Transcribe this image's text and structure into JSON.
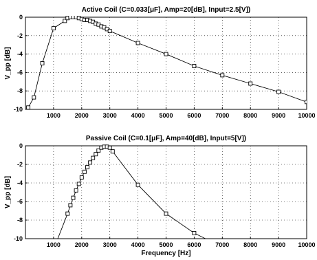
{
  "chart_data": [
    {
      "type": "line",
      "title": "Active Coil (C=0.033[μF], Amp=20[dB], Input=2.5[V])",
      "xlabel": "",
      "ylabel": "V_pp [dB]",
      "xlim": [
        0,
        10000
      ],
      "ylim": [
        -10,
        0
      ],
      "xticks": [
        1000,
        2000,
        3000,
        4000,
        5000,
        6000,
        7000,
        8000,
        9000,
        10000
      ],
      "yticks": [
        0,
        -2,
        -4,
        -6,
        -8,
        -10
      ],
      "grid": true,
      "marker": "square",
      "x": [
        100,
        300,
        600,
        1000,
        1400,
        1500,
        1600,
        1700,
        1800,
        1900,
        2000,
        2100,
        2200,
        2300,
        2400,
        2500,
        2600,
        2700,
        2800,
        2900,
        3000,
        4000,
        5000,
        6000,
        7000,
        8000,
        9000,
        10000
      ],
      "y": [
        -9.8,
        -8.7,
        -5.0,
        -1.2,
        -0.4,
        -0.1,
        0,
        0,
        0,
        -0.1,
        -0.2,
        -0.3,
        -0.3,
        -0.4,
        -0.5,
        -0.7,
        -0.8,
        -1.0,
        -1.1,
        -1.3,
        -1.5,
        -2.8,
        -4.0,
        -5.3,
        -6.3,
        -7.2,
        -8.1,
        -9.2
      ]
    },
    {
      "type": "line",
      "title": "Passive Coil (C=0.1[μF], Amp=40[dB], Input=5[V])",
      "xlabel": "Frequency [Hz]",
      "ylabel": "V_pp [dB]",
      "xlim": [
        0,
        10000
      ],
      "ylim": [
        -10,
        0
      ],
      "xticks": [
        1000,
        2000,
        3000,
        4000,
        5000,
        6000,
        7000,
        8000,
        9000,
        10000
      ],
      "yticks": [
        0,
        -2,
        -4,
        -6,
        -8,
        -10
      ],
      "grid": true,
      "marker": "square",
      "x": [
        1150,
        1500,
        1600,
        1700,
        1800,
        1900,
        2000,
        2100,
        2200,
        2300,
        2400,
        2500,
        2600,
        2700,
        2800,
        2900,
        3000,
        3100,
        4000,
        5000,
        6000,
        6400
      ],
      "y": [
        -10,
        -7.3,
        -6.4,
        -5.6,
        -4.8,
        -4.1,
        -3.4,
        -2.8,
        -2.3,
        -1.8,
        -1.3,
        -0.9,
        -0.5,
        -0.2,
        -0.1,
        -0.1,
        -0.2,
        -0.6,
        -4.2,
        -7.3,
        -9.4,
        -10
      ]
    }
  ]
}
